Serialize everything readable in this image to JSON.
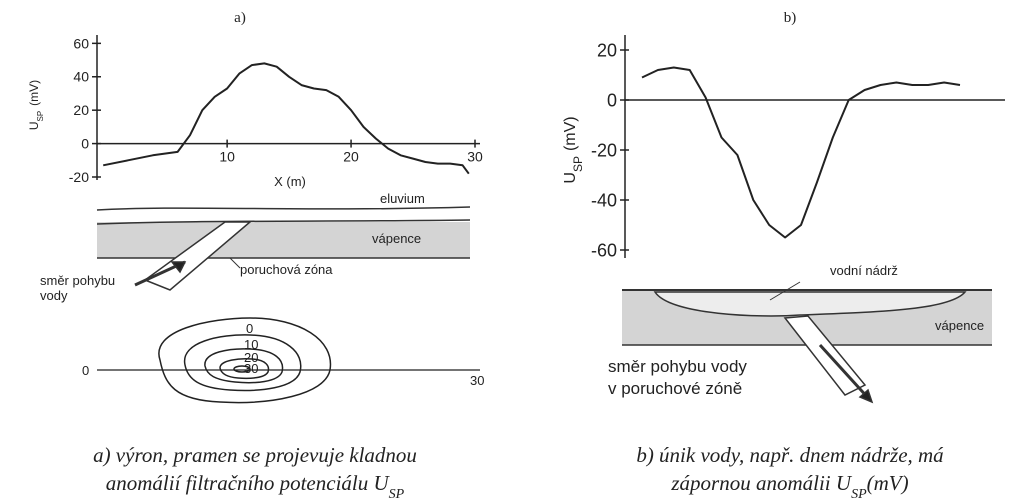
{
  "chart_data": [
    {
      "type": "line",
      "title": "a)",
      "xlabel": "X (m)",
      "ylabel": [
        "U",
        "SP",
        "(mV)"
      ],
      "x": [
        0,
        2,
        4,
        6,
        7,
        8,
        9,
        10,
        11,
        12,
        13,
        14,
        15,
        16,
        17,
        18,
        19,
        20,
        21,
        22,
        23,
        24,
        25,
        26,
        27,
        28,
        29,
        29.5
      ],
      "values": [
        -13,
        -10,
        -7,
        -5,
        5,
        20,
        28,
        33,
        42,
        47,
        48,
        46,
        40,
        35,
        33,
        32,
        28,
        20,
        10,
        3,
        -3,
        -7,
        -9,
        -11,
        -12,
        -12,
        -13,
        -18
      ],
      "xlim": [
        -0.5,
        30
      ],
      "xticks": [
        10,
        20,
        30
      ],
      "ylim": [
        -20,
        65
      ],
      "yticks": [
        -20,
        0,
        20,
        40,
        60
      ],
      "color": "#222222"
    },
    {
      "type": "line",
      "title": "b)",
      "ylabel": [
        "U",
        "SP",
        "(mV)"
      ],
      "values": [
        9,
        12,
        13,
        12,
        1,
        -15,
        -22,
        -40,
        -50,
        -55,
        -50,
        -33,
        -15,
        0,
        4,
        6,
        7,
        6,
        6,
        7,
        6
      ],
      "ylim": [
        -62,
        26
      ],
      "yticks": [
        -60,
        -40,
        -20,
        0,
        20
      ],
      "color": "#222222"
    }
  ],
  "diagrams": [
    {
      "labels": [
        "eluvium",
        "vápence",
        "poruchová zóna",
        "směr pohybu",
        "vody",
        "0",
        "10",
        "20",
        "30",
        "0",
        "30"
      ]
    },
    {
      "labels": [
        "vodní nádrž",
        "vápence",
        "směr pohybu vody",
        "v poruchové zóně"
      ]
    }
  ],
  "captions": [
    [
      [
        "a) výron, pramen se projevuje kladnou"
      ],
      [
        "anomálií filtračního potenciálu U",
        "SP"
      ]
    ],
    [
      [
        "b) únik vody, např. dnem nádrže, má"
      ],
      [
        "zápornou anomálii U",
        "SP",
        "(mV)"
      ]
    ]
  ]
}
